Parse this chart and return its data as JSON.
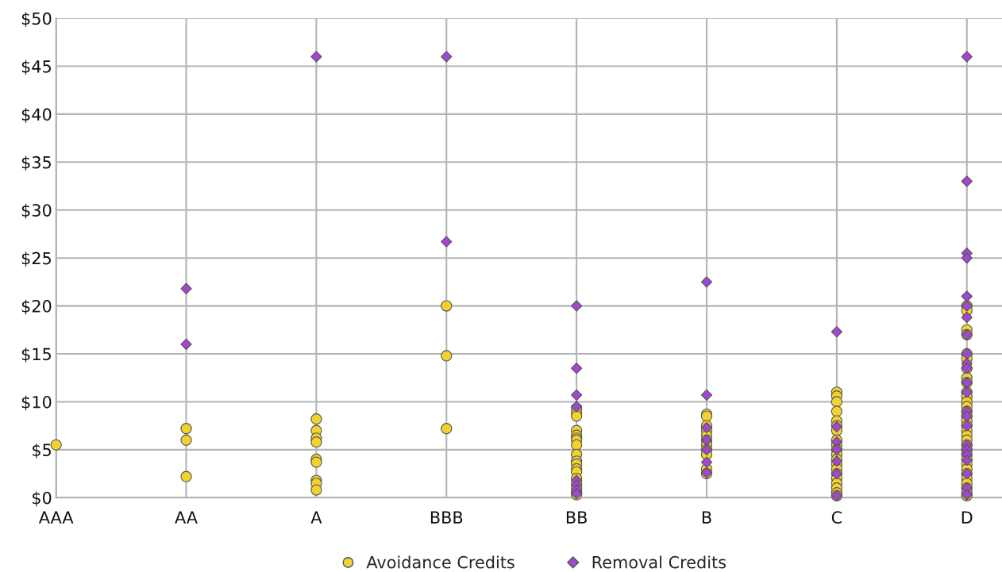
{
  "chart_data": {
    "type": "scatter",
    "categories": [
      "AAA",
      "AA",
      "A",
      "BBB",
      "BB",
      "B",
      "C",
      "D"
    ],
    "ylim": [
      0,
      50
    ],
    "yticks": [
      {
        "value": 0,
        "label": "$0"
      },
      {
        "value": 5,
        "label": "$5"
      },
      {
        "value": 10,
        "label": "$10"
      },
      {
        "value": 15,
        "label": "$15"
      },
      {
        "value": 20,
        "label": "$20"
      },
      {
        "value": 25,
        "label": "$25"
      },
      {
        "value": 30,
        "label": "$30"
      },
      {
        "value": 35,
        "label": "$35"
      },
      {
        "value": 40,
        "label": "$40"
      },
      {
        "value": 45,
        "label": "$45"
      },
      {
        "value": 50,
        "label": "$50"
      }
    ],
    "grid": true,
    "legend": "bottom",
    "series": [
      {
        "name": "Avoidance Credits",
        "color": "#f2d230",
        "marker": "circle",
        "x": [
          "AAA",
          "AA",
          "AA",
          "AA",
          "A",
          "A",
          "A",
          "A",
          "A",
          "A",
          "A",
          "A",
          "A",
          "BBB",
          "BBB",
          "BBB",
          "BB",
          "BB",
          "BB",
          "BB",
          "BB",
          "BB",
          "BB",
          "BB",
          "BB",
          "BB",
          "BB",
          "BB",
          "BB",
          "BB",
          "BB",
          "BB",
          "BB",
          "BB",
          "B",
          "B",
          "B",
          "B",
          "B",
          "B",
          "B",
          "B",
          "B",
          "B",
          "B",
          "C",
          "C",
          "C",
          "C",
          "C",
          "C",
          "C",
          "C",
          "C",
          "C",
          "C",
          "C",
          "C",
          "C",
          "C",
          "C",
          "C",
          "C",
          "C",
          "C",
          "D",
          "D",
          "D",
          "D",
          "D",
          "D",
          "D",
          "D",
          "D",
          "D",
          "D",
          "D",
          "D",
          "D",
          "D",
          "D",
          "D",
          "D",
          "D",
          "D",
          "D",
          "D",
          "D",
          "D",
          "D",
          "D",
          "D",
          "D",
          "D",
          "D",
          "D",
          "D"
        ],
        "values": [
          5.5,
          7.2,
          6.0,
          2.2,
          8.2,
          7.0,
          6.2,
          5.8,
          4.0,
          3.7,
          1.8,
          1.5,
          0.8,
          20,
          14.8,
          7.2,
          9.3,
          8.8,
          8.5,
          7.0,
          6.5,
          6.2,
          6.0,
          5.5,
          4.5,
          3.8,
          3.5,
          3.0,
          2.7,
          2.0,
          1.5,
          1.0,
          0.5,
          0.3,
          8.7,
          8.5,
          7.5,
          7,
          6.5,
          6,
          5.5,
          5,
          4.5,
          3,
          2.5,
          11,
          10.6,
          10,
          9,
          8,
          7.5,
          7,
          6,
          5.5,
          5,
          4.5,
          4,
          3.5,
          3,
          2.5,
          2,
          1.5,
          1,
          0.5,
          0.2,
          20,
          19.5,
          17.5,
          17,
          15,
          14.5,
          13.5,
          12.5,
          12,
          11,
          10.5,
          10,
          9.5,
          9,
          8.5,
          8,
          7.5,
          7,
          6.5,
          6,
          5.5,
          5,
          4.5,
          4,
          3.5,
          3,
          2.5,
          2,
          1.5,
          1,
          0.5,
          0.2
        ]
      },
      {
        "name": "Removal Credits",
        "color": "#a347d1",
        "marker": "diamond",
        "x": [
          "AA",
          "AA",
          "A",
          "BBB",
          "BBB",
          "BB",
          "BB",
          "BB",
          "BB",
          "BB",
          "BB",
          "BB",
          "BB",
          "B",
          "B",
          "B",
          "B",
          "B",
          "B",
          "B",
          "C",
          "C",
          "C",
          "C",
          "C",
          "C",
          "C",
          "D",
          "D",
          "D",
          "D",
          "D",
          "D",
          "D",
          "D",
          "D",
          "D",
          "D",
          "D",
          "D",
          "D",
          "D",
          "D",
          "D",
          "D",
          "D",
          "D",
          "D",
          "D",
          "D"
        ],
        "values": [
          21.8,
          16,
          46,
          46,
          26.7,
          20,
          13.5,
          10.7,
          9.5,
          1.8,
          1.3,
          0.8,
          0.4,
          22.5,
          10.7,
          7.3,
          6,
          5,
          3.7,
          2.6,
          17.3,
          7.4,
          5.8,
          5,
          3.8,
          2.5,
          0.2,
          46,
          33,
          25.5,
          25,
          21,
          20,
          18.8,
          17,
          15,
          14,
          13.5,
          12,
          11,
          9,
          8.5,
          7.5,
          5.5,
          5,
          4.5,
          3.9,
          2.5,
          1,
          0.3
        ]
      }
    ]
  }
}
